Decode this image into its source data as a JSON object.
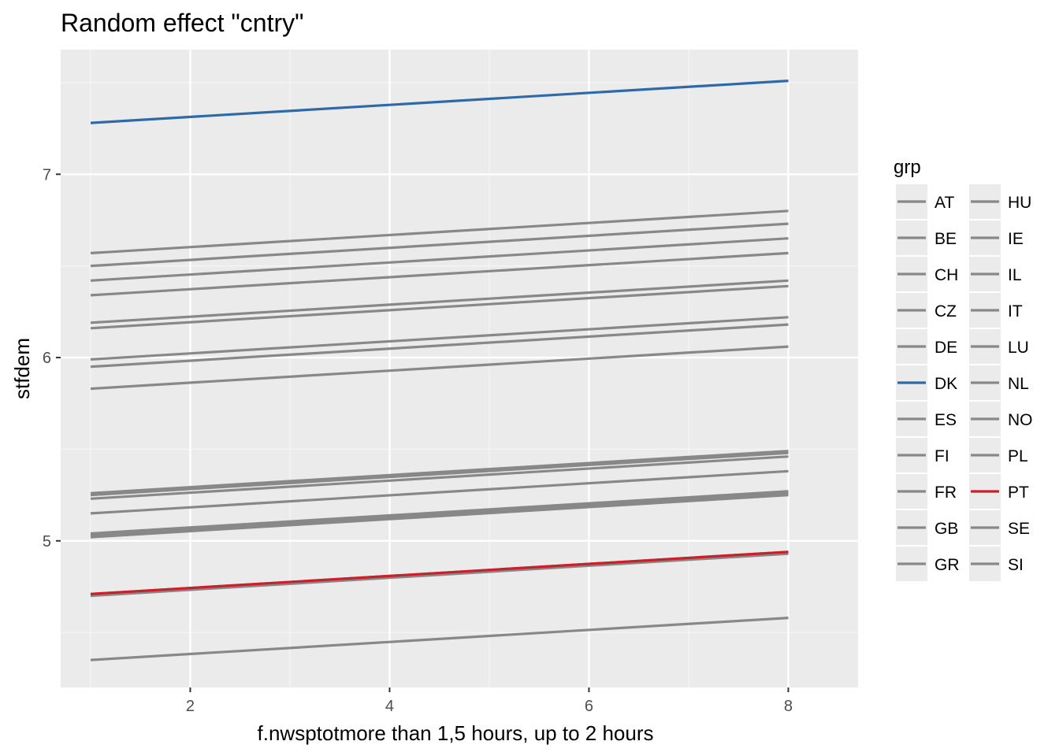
{
  "chart_data": {
    "type": "line",
    "title": "Random effect \"cntry\"",
    "xlabel": "f.nwsptotmore than 1,5 hours, up to 2 hours",
    "ylabel": "stfdem",
    "xlim": [
      0.7,
      8.7
    ],
    "ylim": [
      4.2,
      7.68
    ],
    "x_ticks": [
      2,
      4,
      6,
      8
    ],
    "x_tick_labels": [
      "2",
      "4",
      "6",
      "8"
    ],
    "y_ticks": [
      5,
      6,
      7
    ],
    "y_tick_labels": [
      "5",
      "6",
      "7"
    ],
    "x_minor": [
      1,
      3,
      5,
      7
    ],
    "y_minor": [
      4.5,
      5.5,
      6.5,
      7.5
    ],
    "grid": true,
    "legend": {
      "title": "grp",
      "placement": "right",
      "columns": 2
    },
    "x": [
      1,
      8
    ],
    "series": [
      {
        "name": "AT",
        "color": "#888888",
        "values": [
          6.57,
          6.8
        ]
      },
      {
        "name": "BE",
        "color": "#888888",
        "values": [
          6.5,
          6.73
        ]
      },
      {
        "name": "CH",
        "color": "#888888",
        "values": [
          6.42,
          6.65
        ]
      },
      {
        "name": "CZ",
        "color": "#888888",
        "values": [
          6.34,
          6.57
        ]
      },
      {
        "name": "DE",
        "color": "#888888",
        "values": [
          6.19,
          6.42
        ]
      },
      {
        "name": "DK",
        "color": "#2e6aa8",
        "values": [
          7.28,
          7.51
        ]
      },
      {
        "name": "ES",
        "color": "#888888",
        "values": [
          6.16,
          6.39
        ]
      },
      {
        "name": "FI",
        "color": "#888888",
        "values": [
          5.99,
          6.22
        ]
      },
      {
        "name": "FR",
        "color": "#888888",
        "values": [
          5.95,
          6.18
        ]
      },
      {
        "name": "GB",
        "color": "#888888",
        "values": [
          5.83,
          6.06
        ]
      },
      {
        "name": "GR",
        "color": "#888888",
        "values": [
          5.26,
          5.49
        ]
      },
      {
        "name": "HU",
        "color": "#888888",
        "values": [
          5.25,
          5.48
        ]
      },
      {
        "name": "IE",
        "color": "#888888",
        "values": [
          5.23,
          5.46
        ]
      },
      {
        "name": "IL",
        "color": "#888888",
        "values": [
          5.15,
          5.38
        ]
      },
      {
        "name": "IT",
        "color": "#888888",
        "values": [
          5.04,
          5.27
        ]
      },
      {
        "name": "LU",
        "color": "#888888",
        "values": [
          5.03,
          5.26
        ]
      },
      {
        "name": "NL",
        "color": "#888888",
        "values": [
          5.02,
          5.25
        ]
      },
      {
        "name": "NO",
        "color": "#888888",
        "values": [
          4.71,
          4.94
        ]
      },
      {
        "name": "PL",
        "color": "#888888",
        "values": [
          4.705,
          4.935
        ]
      },
      {
        "name": "PT",
        "color": "#cc1f2a",
        "values": [
          4.71,
          4.94
        ]
      },
      {
        "name": "SE",
        "color": "#888888",
        "values": [
          4.7,
          4.93
        ]
      },
      {
        "name": "SI",
        "color": "#888888",
        "values": [
          4.35,
          4.58
        ]
      }
    ]
  }
}
